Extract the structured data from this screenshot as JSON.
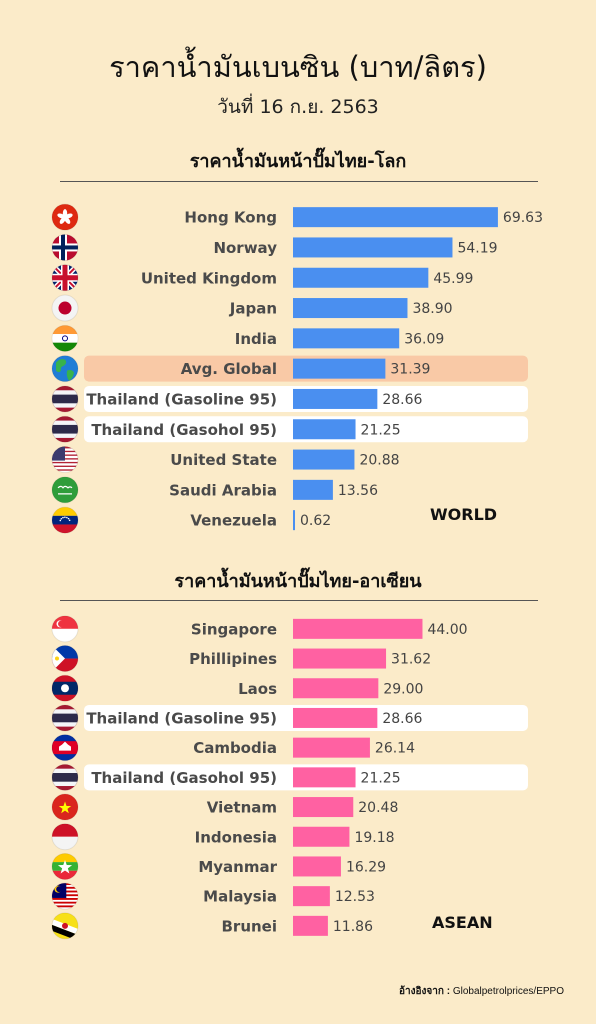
{
  "header": {
    "title": "ราคาน้ำมันเบนซิน (บาท/ลิตร)",
    "date": "วันที่ 16 ก.ย. 2563"
  },
  "sections": {
    "world": {
      "title": "ราคาน้ำมันหน้าปั๊มไทย-โลก",
      "tag": "WORLD"
    },
    "asean": {
      "title": "ราคาน้ำมันหน้าปั๊มไทย-อาเซียน",
      "tag": "ASEAN"
    }
  },
  "source": {
    "label": "อ้างอิงจาก :",
    "text": "Globalpetrolprices/EPPO"
  },
  "colors": {
    "background": "#fbebc9",
    "world_bar": "#4a8ff0",
    "asean_bar": "#ff61a2",
    "highlight_avg": "#f9c9a6",
    "highlight_thai": "#ffffff",
    "label": "#4a4a4a"
  },
  "chart_data": [
    {
      "type": "bar",
      "orientation": "horizontal",
      "categories": [
        "Hong Kong",
        "Norway",
        "United Kingdom",
        "Japan",
        "India",
        "Avg. Global",
        "Thailand (Gasoline 95)",
        "Thailand (Gasohol 95)",
        "United State",
        "Saudi Arabia",
        "Venezuela"
      ],
      "values": [
        69.63,
        54.19,
        45.99,
        38.9,
        36.09,
        31.39,
        28.66,
        21.25,
        20.88,
        13.56,
        0.62
      ],
      "value_labels": [
        "69.63",
        "54.19",
        "45.99",
        "38.90",
        "36.09",
        "31.39",
        "28.66",
        "21.25",
        "20.88",
        "13.56",
        "0.62"
      ],
      "icons": [
        "hong-kong-flag-icon",
        "norway-flag-icon",
        "united-kingdom-flag-icon",
        "japan-flag-icon",
        "india-flag-icon",
        "globe-icon",
        "thailand-flag-icon",
        "thailand-flag-icon",
        "united-states-flag-icon",
        "saudi-arabia-flag-icon",
        "venezuela-flag-icon"
      ],
      "highlights": [
        "",
        "",
        "",
        "",
        "",
        "avg",
        "thai",
        "thai",
        "",
        "",
        ""
      ],
      "grid": false,
      "legend": "none"
    },
    {
      "type": "bar",
      "orientation": "horizontal",
      "categories": [
        "Singapore",
        "Phillipines",
        "Laos",
        "Thailand (Gasoline 95)",
        "Cambodia",
        "Thailand (Gasohol 95)",
        "Vietnam",
        "Indonesia",
        "Myanmar",
        "Malaysia",
        "Brunei"
      ],
      "values": [
        44.0,
        31.62,
        29.0,
        28.66,
        26.14,
        21.25,
        20.48,
        19.18,
        16.29,
        12.53,
        11.86
      ],
      "value_labels": [
        "44.00",
        "31.62",
        "29.00",
        "28.66",
        "26.14",
        "21.25",
        "20.48",
        "19.18",
        "16.29",
        "12.53",
        "11.86"
      ],
      "icons": [
        "singapore-flag-icon",
        "philippines-flag-icon",
        "laos-flag-icon",
        "thailand-flag-icon",
        "cambodia-flag-icon",
        "thailand-flag-icon",
        "vietnam-flag-icon",
        "indonesia-flag-icon",
        "myanmar-flag-icon",
        "malaysia-flag-icon",
        "brunei-flag-icon"
      ],
      "highlights": [
        "",
        "",
        "",
        "thai",
        "",
        "thai",
        "",
        "",
        "",
        "",
        ""
      ],
      "grid": false,
      "legend": "none"
    }
  ]
}
